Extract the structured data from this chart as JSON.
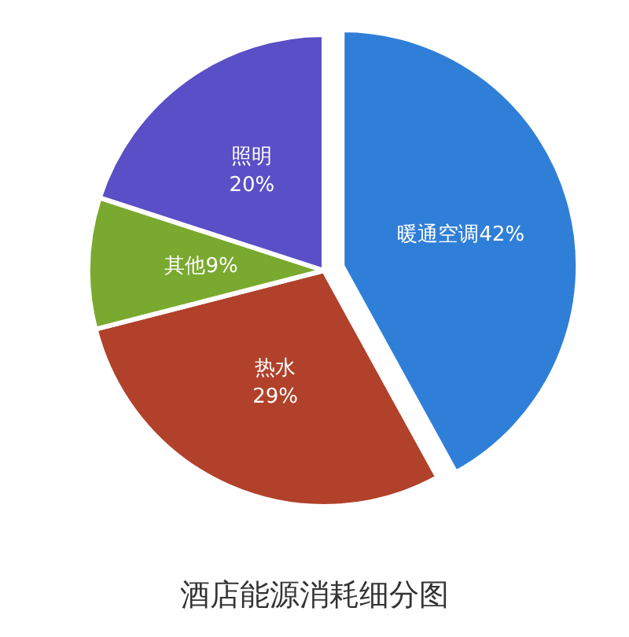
{
  "chart_data": {
    "type": "pie",
    "title": "酒店能源消耗细分图",
    "categories": [
      "暖通空调",
      "热水",
      "其他",
      "照明"
    ],
    "values": [
      42,
      29,
      9,
      20
    ],
    "colors": [
      "#2f7fd8",
      "#b1412b",
      "#7aa92f",
      "#5a4fc6"
    ],
    "value_labels": [
      "42%",
      "29%",
      "9%",
      "20%"
    ],
    "legend": false
  }
}
